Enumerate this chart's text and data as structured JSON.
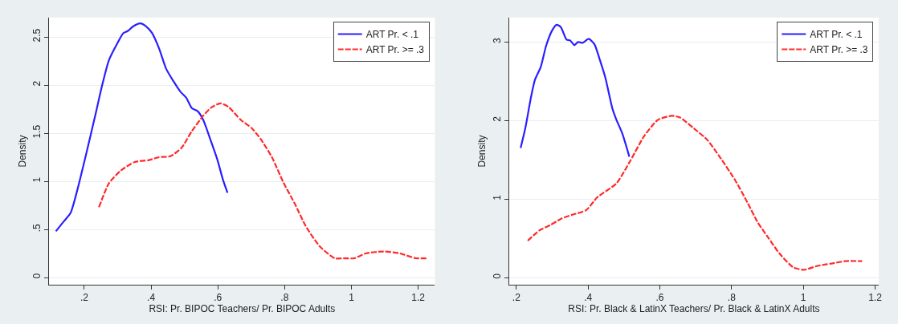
{
  "chart_data": [
    {
      "type": "line",
      "xlabel": "RSI: Pr. BIPOC Teachers/ Pr. BIPOC Adults",
      "ylabel": "Density",
      "xlim": [
        0.095,
        1.25
      ],
      "xticks": [
        {
          "value": 0.2,
          "label": ".2"
        },
        {
          "value": 0.4,
          "label": ".4"
        },
        {
          "value": 0.6,
          "label": ".6"
        },
        {
          "value": 0.8,
          "label": ".8"
        },
        1,
        1.2
      ],
      "ylim": [
        -0.075,
        2.7
      ],
      "yticks": [
        0,
        {
          "value": 0.5,
          "label": ".5"
        },
        1,
        1.5,
        2,
        2.5
      ],
      "grid": "y",
      "legend": "top right",
      "marker": "none",
      "series": [
        {
          "name": "ART Pr. < .1",
          "color": "#2a1fff",
          "line_style": "solid",
          "x": [
            0.115,
            0.138,
            0.159,
            0.18,
            0.202,
            0.232,
            0.253,
            0.274,
            0.3,
            0.317,
            0.33,
            0.347,
            0.368,
            0.385,
            0.403,
            0.424,
            0.445,
            0.467,
            0.488,
            0.505,
            0.522,
            0.539,
            0.556,
            0.578,
            0.599,
            0.615,
            0.629
          ],
          "values": [
            0.48,
            0.58,
            0.67,
            0.92,
            1.23,
            1.67,
            1.99,
            2.26,
            2.44,
            2.54,
            2.56,
            2.61,
            2.64,
            2.61,
            2.54,
            2.38,
            2.17,
            2.04,
            1.93,
            1.87,
            1.76,
            1.73,
            1.64,
            1.43,
            1.22,
            1.02,
            0.88
          ]
        },
        {
          "name": "ART Pr. >= .3",
          "color": "#ff2a2a",
          "line_style": "dashed",
          "x": [
            0.244,
            0.274,
            0.309,
            0.351,
            0.394,
            0.424,
            0.458,
            0.492,
            0.522,
            0.556,
            0.582,
            0.608,
            0.633,
            0.668,
            0.702,
            0.728,
            0.762,
            0.796,
            0.83,
            0.864,
            0.906,
            0.95,
            0.975,
            1.009,
            1.043,
            1.095,
            1.146,
            1.193,
            1.227
          ],
          "values": [
            0.73,
            0.98,
            1.11,
            1.2,
            1.22,
            1.25,
            1.26,
            1.35,
            1.52,
            1.68,
            1.77,
            1.81,
            1.77,
            1.64,
            1.55,
            1.44,
            1.25,
            0.99,
            0.77,
            0.53,
            0.32,
            0.2,
            0.2,
            0.2,
            0.25,
            0.27,
            0.25,
            0.2,
            0.2
          ]
        }
      ]
    },
    {
      "type": "line",
      "xlabel": "RSI: Pr. Black & LatinX Teachers/ Pr. Black & LatinX Adults",
      "ylabel": "Density",
      "xlim": [
        0.18,
        1.21
      ],
      "xticks": [
        {
          "value": 0.2,
          "label": ".2"
        },
        {
          "value": 0.4,
          "label": ".4"
        },
        {
          "value": 0.6,
          "label": ".6"
        },
        {
          "value": 0.8,
          "label": ".8"
        },
        1,
        1.2
      ],
      "ylim": [
        -0.09,
        3.31
      ],
      "yticks": [
        0,
        1,
        2,
        3
      ],
      "grid": "y",
      "legend": "top right",
      "marker": "none",
      "series": [
        {
          "name": "ART Pr. < .1",
          "color": "#2a1fff",
          "line_style": "solid",
          "x": [
            0.212,
            0.225,
            0.241,
            0.252,
            0.268,
            0.283,
            0.299,
            0.312,
            0.324,
            0.34,
            0.35,
            0.362,
            0.372,
            0.385,
            0.402,
            0.418,
            0.433,
            0.448,
            0.468,
            0.479,
            0.495,
            0.515
          ],
          "values": [
            1.65,
            1.9,
            2.3,
            2.52,
            2.68,
            2.95,
            3.14,
            3.22,
            3.19,
            3.03,
            3.02,
            2.96,
            3.0,
            2.99,
            3.04,
            2.97,
            2.77,
            2.55,
            2.15,
            2.01,
            1.84,
            1.54
          ]
        },
        {
          "name": "ART Pr. >= .3",
          "color": "#ff2a2a",
          "line_style": "dashed",
          "x": [
            0.232,
            0.264,
            0.295,
            0.325,
            0.356,
            0.395,
            0.425,
            0.479,
            0.518,
            0.556,
            0.595,
            0.633,
            0.656,
            0.695,
            0.733,
            0.768,
            0.81,
            0.845,
            0.872,
            0.902,
            0.933,
            0.972,
            1.002,
            1.04,
            1.079,
            1.118,
            1.164
          ],
          "values": [
            0.47,
            0.6,
            0.67,
            0.75,
            0.8,
            0.86,
            1.02,
            1.2,
            1.49,
            1.8,
            2.01,
            2.06,
            2.04,
            1.9,
            1.75,
            1.53,
            1.24,
            0.95,
            0.71,
            0.51,
            0.31,
            0.13,
            0.1,
            0.15,
            0.18,
            0.21,
            0.21
          ]
        }
      ]
    }
  ]
}
